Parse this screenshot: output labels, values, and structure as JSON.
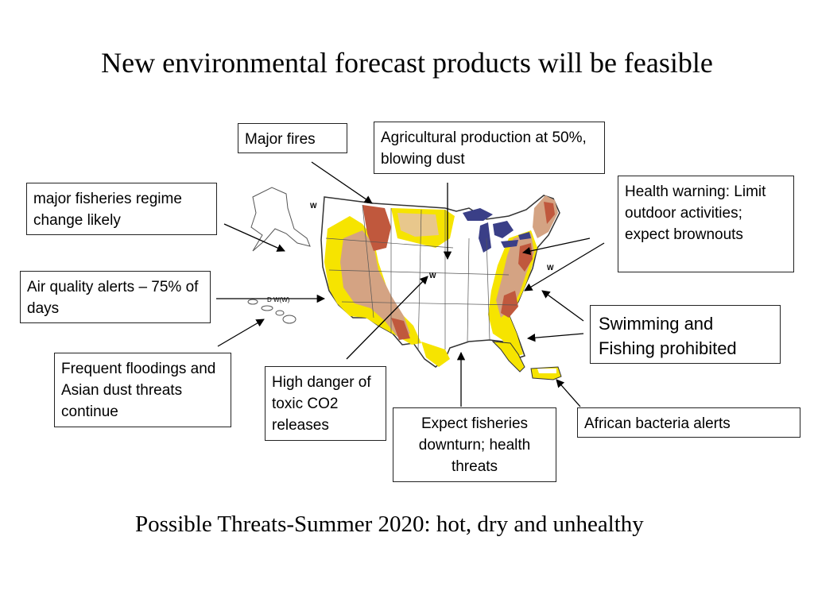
{
  "title": "New environmental forecast products will be feasible",
  "subtitle": "Possible Threats-Summer 2020: hot, dry and unhealthy",
  "callouts": {
    "major_fires": "Major fires",
    "agricultural": "Agricultural production at 50%, blowing dust",
    "fisheries_regime": "major fisheries regime change likely",
    "health_warning": "Health warning: Limit outdoor activities; expect brownouts",
    "air_quality": "Air quality alerts – 75% of days",
    "swimming": "Swimming and Fishing prohibited",
    "floodings": "Frequent floodings and Asian dust threats continue",
    "toxic_co2": "High danger of toxic CO2 releases",
    "fisheries_downturn": "Expect fisheries downturn; health threats",
    "african_bacteria": "African bacteria  alerts"
  },
  "map_labels": {
    "w": "W",
    "dw": "D W(W)"
  },
  "colors": {
    "severe": "#c0583d",
    "moderate": "#d4a383",
    "abnormal": "#f6e400",
    "lakes": "#3a3f87",
    "land": "#ffffff",
    "border": "#333333"
  }
}
